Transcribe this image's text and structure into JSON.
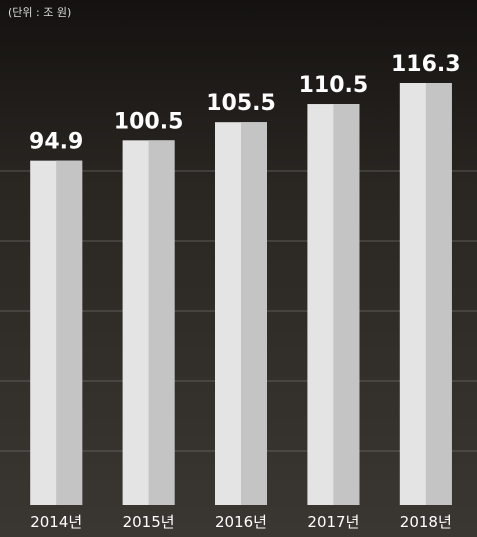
{
  "chart_data": {
    "type": "bar",
    "subtitle": "(단위 : 조 원)",
    "categories": [
      "2014년",
      "2015년",
      "2016년",
      "2017년",
      "2018년"
    ],
    "values": [
      94.9,
      100.5,
      105.5,
      110.5,
      116.3
    ],
    "color": "#e4e4e4"
  }
}
